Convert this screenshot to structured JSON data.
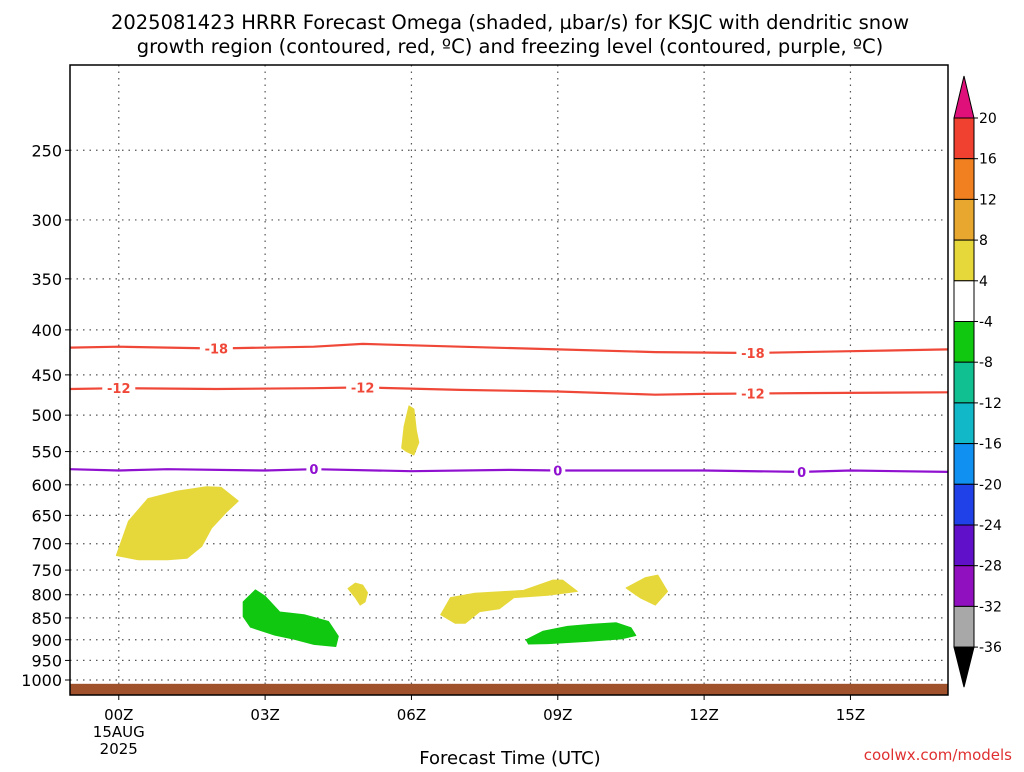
{
  "title_line1": "2025081423 HRRR Forecast Omega (shaded, µbar/s) for KSJC with dendritic snow",
  "title_line2": "growth region (contoured, red, ºC) and freezing level (contoured, purple, ºC)",
  "xlabel": "Forecast Time (UTC)",
  "credit": "coolwx.com/models",
  "chart_data": {
    "type": "time-pressure cross section (shaded + contours)",
    "title": "2025081423 HRRR Forecast Omega (shaded, µbar/s) for KSJC with dendritic snow growth region (contoured, red, ºC) and freezing level (contoured, purple, ºC)",
    "xlabel": "Forecast Time (UTC)",
    "ylabel": "",
    "x_range_hours": [
      -1,
      17
    ],
    "y_range_hPa": [
      1040,
      200
    ],
    "y_scale": "log",
    "grid": true,
    "x_ticks": [
      {
        "hour": 0,
        "label": "00Z",
        "sub": [
          "15AUG",
          "2025"
        ]
      },
      {
        "hour": 3,
        "label": "03Z",
        "sub": []
      },
      {
        "hour": 6,
        "label": "06Z",
        "sub": []
      },
      {
        "hour": 9,
        "label": "09Z",
        "sub": []
      },
      {
        "hour": 12,
        "label": "12Z",
        "sub": []
      },
      {
        "hour": 15,
        "label": "15Z",
        "sub": []
      }
    ],
    "y_ticks": [
      250,
      300,
      350,
      400,
      450,
      500,
      550,
      600,
      650,
      700,
      750,
      800,
      850,
      900,
      950,
      1000
    ],
    "ground_level_hPa": 1010,
    "ground_color": "#a0522d",
    "contours": [
      {
        "value": -18,
        "label": "-18",
        "color": "#f04838",
        "points": [
          [
            -1,
            419
          ],
          [
            0,
            418
          ],
          [
            2,
            420
          ],
          [
            4,
            418
          ],
          [
            5,
            415
          ],
          [
            7,
            418
          ],
          [
            9,
            421
          ],
          [
            11,
            424
          ],
          [
            13,
            425
          ],
          [
            15,
            423
          ],
          [
            17,
            421
          ]
        ],
        "label_hours": [
          2,
          13
        ]
      },
      {
        "value": -12,
        "label": "-12",
        "color": "#f04838",
        "points": [
          [
            -1,
            467
          ],
          [
            0,
            466
          ],
          [
            2,
            467
          ],
          [
            4,
            466
          ],
          [
            5,
            465
          ],
          [
            7,
            468
          ],
          [
            9,
            470
          ],
          [
            11,
            474
          ],
          [
            12,
            473
          ],
          [
            14,
            472
          ],
          [
            17,
            471
          ]
        ],
        "label_hours": [
          0,
          5,
          13
        ]
      },
      {
        "value": 0,
        "label": "0",
        "color": "#9010d0",
        "points": [
          [
            -1,
            576
          ],
          [
            0,
            578
          ],
          [
            1,
            576
          ],
          [
            3,
            578
          ],
          [
            4,
            576
          ],
          [
            6,
            579
          ],
          [
            8,
            577
          ],
          [
            9,
            578
          ],
          [
            12,
            578
          ],
          [
            14,
            580
          ],
          [
            15,
            578
          ],
          [
            17,
            580
          ]
        ],
        "label_hours": [
          4,
          9,
          14
        ]
      }
    ],
    "omega_regions": [
      {
        "value_range": [
          4,
          8
        ],
        "color": "#e6d83a",
        "outline": [
          [
            -0.05,
            722
          ],
          [
            0.2,
            660
          ],
          [
            0.6,
            622
          ],
          [
            1.2,
            610
          ],
          [
            1.8,
            603
          ],
          [
            2.1,
            604
          ],
          [
            2.45,
            626
          ],
          [
            2.2,
            645
          ],
          [
            1.9,
            672
          ],
          [
            1.7,
            705
          ],
          [
            1.4,
            727
          ],
          [
            1,
            730
          ],
          [
            0.4,
            730
          ]
        ]
      },
      {
        "value_range": [
          4,
          8
        ],
        "color": "#e6d83a",
        "outline": [
          [
            5.8,
            545
          ],
          [
            5.85,
            515
          ],
          [
            5.95,
            488
          ],
          [
            6.05,
            492
          ],
          [
            6.1,
            520
          ],
          [
            6.15,
            537
          ],
          [
            6.05,
            555
          ],
          [
            5.9,
            550
          ]
        ]
      },
      {
        "value_range": [
          4,
          8
        ],
        "color": "#e6d83a",
        "outline": [
          [
            4.7,
            787
          ],
          [
            4.85,
            776
          ],
          [
            5,
            780
          ],
          [
            5.1,
            796
          ],
          [
            5.05,
            815
          ],
          [
            4.95,
            822
          ],
          [
            4.85,
            806
          ]
        ]
      },
      {
        "value_range": [
          4,
          8
        ],
        "color": "#e6d83a",
        "outline": [
          [
            6.6,
            843
          ],
          [
            6.8,
            806
          ],
          [
            7.3,
            797
          ],
          [
            8.3,
            791
          ],
          [
            8.9,
            770
          ],
          [
            9.1,
            770
          ],
          [
            9.4,
            793
          ],
          [
            8.8,
            801
          ],
          [
            8.1,
            806
          ],
          [
            7.8,
            830
          ],
          [
            7.4,
            836
          ],
          [
            7.1,
            862
          ],
          [
            6.9,
            862
          ]
        ]
      },
      {
        "value_range": [
          4,
          8
        ],
        "color": "#e6d83a",
        "outline": [
          [
            10.4,
            786
          ],
          [
            10.8,
            765
          ],
          [
            11.05,
            760
          ],
          [
            11.25,
            793
          ],
          [
            11.0,
            822
          ],
          [
            10.7,
            807
          ]
        ]
      },
      {
        "value_range": [
          -8,
          -4
        ],
        "color": "#10c810",
        "outline": [
          [
            2.55,
            815
          ],
          [
            2.8,
            790
          ],
          [
            3.0,
            803
          ],
          [
            3.3,
            837
          ],
          [
            3.8,
            843
          ],
          [
            4.3,
            858
          ],
          [
            4.5,
            892
          ],
          [
            4.45,
            916
          ],
          [
            4.0,
            911
          ],
          [
            3.6,
            899
          ],
          [
            3.2,
            889
          ],
          [
            2.7,
            871
          ],
          [
            2.55,
            847
          ]
        ]
      },
      {
        "value_range": [
          -8,
          -4
        ],
        "color": "#10c810",
        "outline": [
          [
            8.35,
            900
          ],
          [
            8.7,
            880
          ],
          [
            9.2,
            869
          ],
          [
            9.7,
            864
          ],
          [
            10.2,
            861
          ],
          [
            10.5,
            872
          ],
          [
            10.6,
            890
          ],
          [
            10.3,
            898
          ],
          [
            9.6,
            904
          ],
          [
            8.8,
            909
          ],
          [
            8.4,
            910
          ]
        ]
      }
    ],
    "colorbar": {
      "labels": [
        "20",
        "16",
        "12",
        "8",
        "4",
        "-4",
        "-8",
        "-12",
        "-16",
        "-20",
        "-24",
        "-28",
        "-32",
        "-36"
      ],
      "segments": [
        {
          "from": 16,
          "to": 20,
          "color": "#f04030"
        },
        {
          "from": 12,
          "to": 16,
          "color": "#f08020"
        },
        {
          "from": 8,
          "to": 12,
          "color": "#e8a830"
        },
        {
          "from": 4,
          "to": 8,
          "color": "#e6d83a"
        },
        {
          "from": -4,
          "to": 4,
          "color": "#ffffff"
        },
        {
          "from": -8,
          "to": -4,
          "color": "#10c810"
        },
        {
          "from": -12,
          "to": -8,
          "color": "#10c090"
        },
        {
          "from": -16,
          "to": -12,
          "color": "#10b8c8"
        },
        {
          "from": -20,
          "to": -16,
          "color": "#1090f0"
        },
        {
          "from": -24,
          "to": -20,
          "color": "#2040e8"
        },
        {
          "from": -28,
          "to": -24,
          "color": "#6010c8"
        },
        {
          "from": -32,
          "to": -28,
          "color": "#9010c0"
        },
        {
          "from": -36,
          "to": -32,
          "color": "#a8a8a8"
        }
      ],
      "over_color": "#e0107a",
      "under_color": "#000000"
    }
  }
}
